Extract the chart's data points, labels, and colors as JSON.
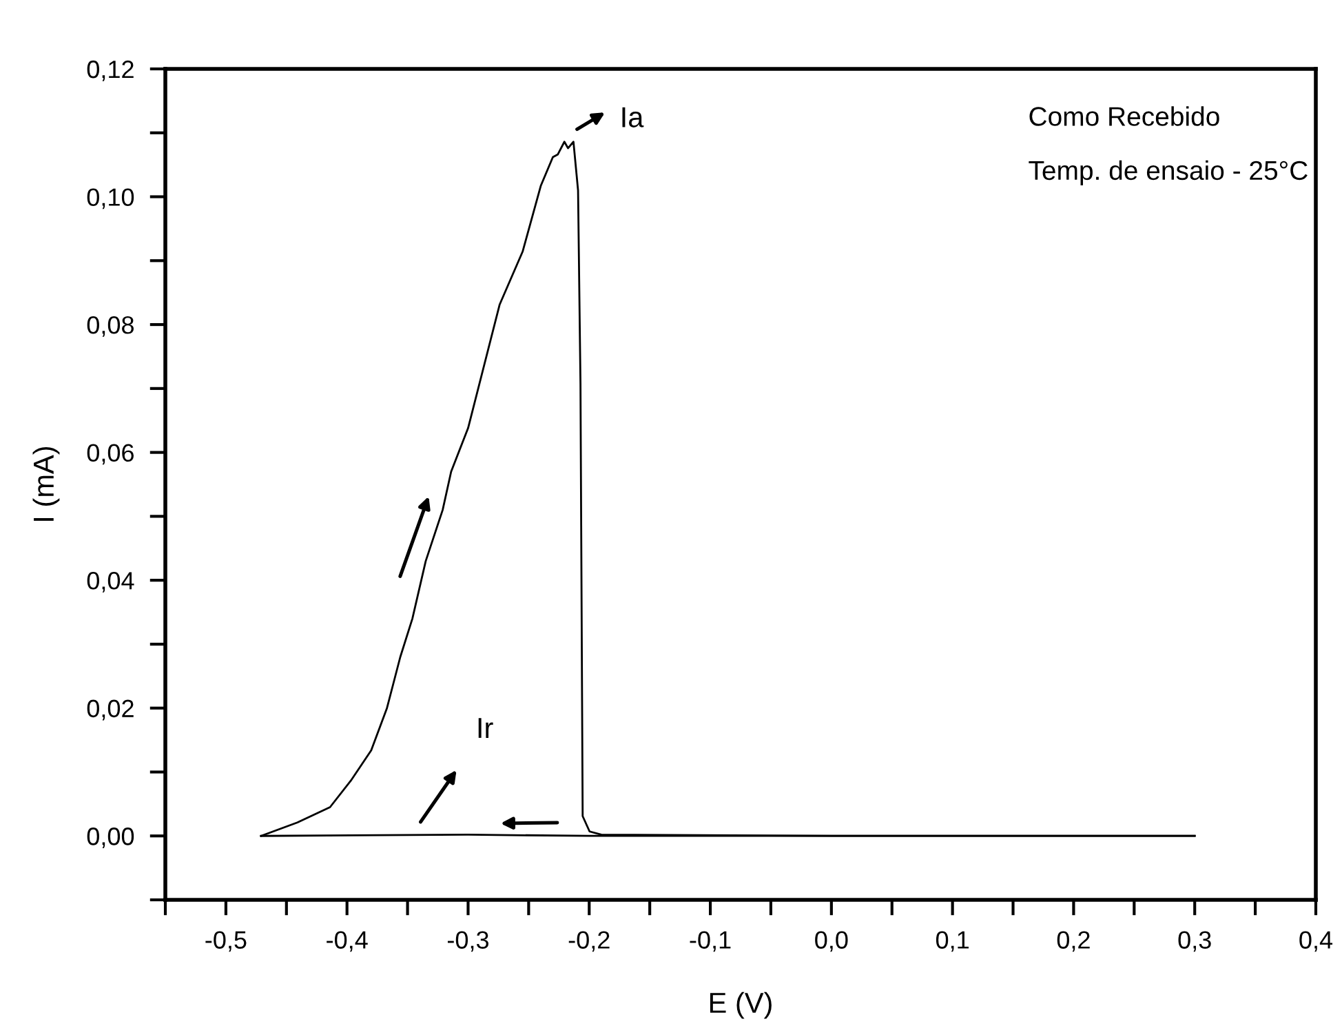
{
  "chart_data": {
    "type": "line",
    "xlabel": "E (V)",
    "ylabel": "I (mA)",
    "series": [
      {
        "color": "#000000",
        "x": [
          -0.471,
          -0.441,
          -0.414,
          -0.397,
          -0.38,
          -0.367,
          -0.356,
          -0.346,
          -0.335,
          -0.321,
          -0.314,
          -0.3,
          -0.274,
          -0.255,
          -0.24,
          -0.23,
          -0.226,
          -0.2205,
          -0.2175,
          -0.213,
          -0.2092,
          -0.2072,
          -0.2054,
          -0.1997,
          -0.19,
          0.0,
          0.3
        ],
        "values": [
          0,
          0.0021,
          0.0045,
          0.0086,
          0.0134,
          0.02,
          0.028,
          0.034,
          0.043,
          0.051,
          0.057,
          0.0638,
          0.0831,
          0.0914,
          0.1017,
          0.1062,
          0.1066,
          0.1086,
          0.1076,
          0.1086,
          0.101,
          0.0707,
          0.0031,
          0.0007,
          0.0002,
          0,
          0
        ]
      },
      {
        "color": "#000000",
        "x": [
          -0.471,
          -0.3,
          -0.2,
          0.0,
          0.3
        ],
        "values": [
          0,
          0.0002,
          0,
          0,
          0
        ]
      }
    ],
    "xlim": [
      -0.55,
      0.4
    ],
    "xticks": [
      {
        "value": -0.55,
        "label": null
      },
      {
        "value": -0.5,
        "label": "-0,5"
      },
      {
        "value": -0.45,
        "label": null
      },
      {
        "value": -0.4,
        "label": "-0,4"
      },
      {
        "value": -0.35,
        "label": null
      },
      {
        "value": -0.3,
        "label": "-0,3"
      },
      {
        "value": -0.25,
        "label": null
      },
      {
        "value": -0.2,
        "label": "-0,2"
      },
      {
        "value": -0.15,
        "label": null
      },
      {
        "value": -0.1,
        "label": "-0,1"
      },
      {
        "value": -0.05,
        "label": null
      },
      {
        "value": 0.0,
        "label": "0,0"
      },
      {
        "value": 0.05,
        "label": null
      },
      {
        "value": 0.1,
        "label": "0,1"
      },
      {
        "value": 0.15,
        "label": null
      },
      {
        "value": 0.2,
        "label": "0,2"
      },
      {
        "value": 0.25,
        "label": null
      },
      {
        "value": 0.3,
        "label": "0,3"
      },
      {
        "value": 0.35,
        "label": null
      },
      {
        "value": 0.4,
        "label": "0,4"
      }
    ],
    "ylim": [
      -0.01,
      0.12
    ],
    "yticks": [
      {
        "value": -0.01,
        "label": null
      },
      {
        "value": 0.0,
        "label": "0,00"
      },
      {
        "value": 0.01,
        "label": null
      },
      {
        "value": 0.02,
        "label": "0,02"
      },
      {
        "value": 0.03,
        "label": null
      },
      {
        "value": 0.04,
        "label": "0,04"
      },
      {
        "value": 0.05,
        "label": null
      },
      {
        "value": 0.06,
        "label": "0,06"
      },
      {
        "value": 0.07,
        "label": null
      },
      {
        "value": 0.08,
        "label": "0,08"
      },
      {
        "value": 0.09,
        "label": null
      },
      {
        "value": 0.1,
        "label": "0,10"
      },
      {
        "value": 0.11,
        "label": null
      },
      {
        "value": 0.12,
        "label": "0,12"
      }
    ],
    "annotations": [
      "Ia",
      "Ir",
      "Como Recebido",
      "Temp. de ensaio - 25°C"
    ],
    "grid": false,
    "legend": false,
    "marker": "none",
    "line_style": "solid"
  }
}
